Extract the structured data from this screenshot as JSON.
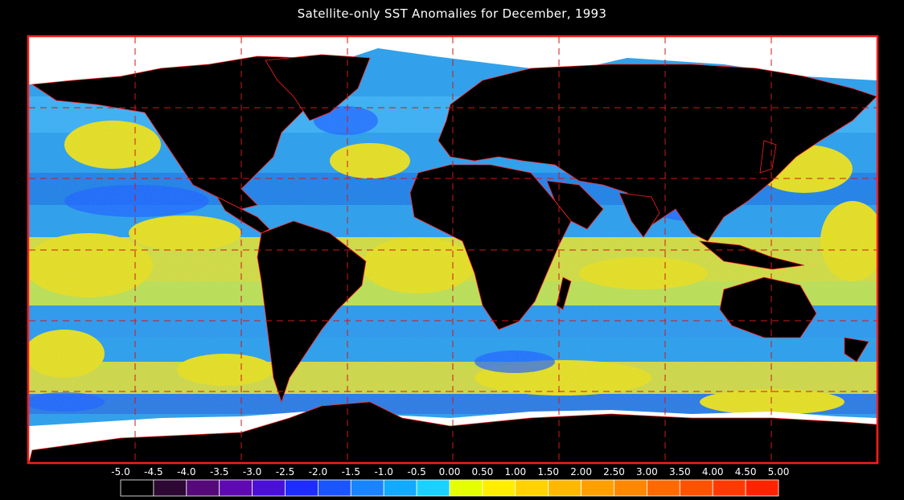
{
  "title": "Satellite-only SST Anomalies for December, 1993",
  "map": {
    "variable": "SST anomaly",
    "projection": "equirectangular",
    "frame_color": "#ff1a1a",
    "grid_color": "#cc1a1a",
    "grid_style": "dashed",
    "land_color": "#000000",
    "ice_color": "#ffffff",
    "coastline_color": "#ff2020",
    "ocean_base_color": "#2a9be6",
    "warm_anomaly_color": "#ffe400"
  },
  "legend": {
    "ticks": [
      "-5.0",
      "-4.5",
      "-4.0",
      "-3.5",
      "-3.0",
      "-2.5",
      "-2.0",
      "-1.5",
      "-1.0",
      "-0.5",
      "0.00",
      "0.50",
      "1.00",
      "1.50",
      "2.00",
      "2.50",
      "3.00",
      "3.50",
      "4.00",
      "4.50",
      "5.00"
    ],
    "colors": [
      "#000000",
      "#2d0833",
      "#560a7a",
      "#5e0ab0",
      "#4a10d8",
      "#1e2cff",
      "#1a55ff",
      "#1a84ff",
      "#12aaff",
      "#1ad2ff",
      "#e6ff00",
      "#ffee00",
      "#ffd200",
      "#ffb800",
      "#ffa000",
      "#ff8800",
      "#ff6a00",
      "#ff5200",
      "#ff3a00",
      "#ff2400"
    ]
  }
}
